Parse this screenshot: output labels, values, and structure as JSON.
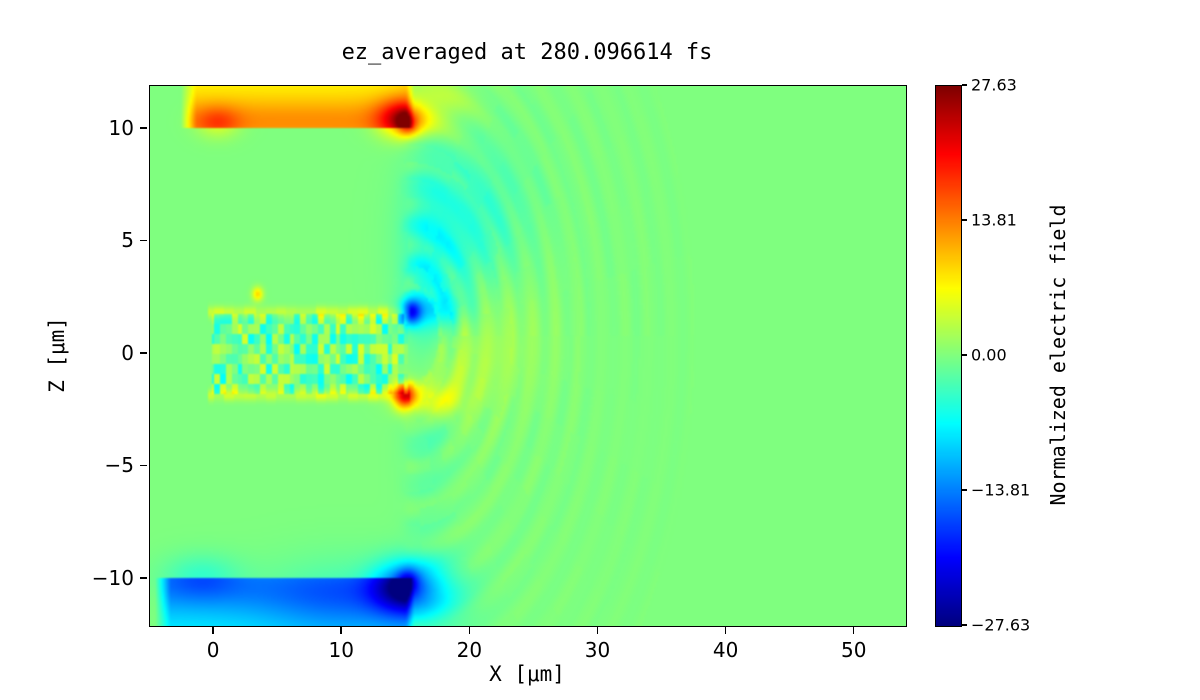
{
  "title": "ez_averaged at 280.096614 fs",
  "axes": {
    "xlabel": "X [μm]",
    "ylabel": "Z [μm]"
  },
  "colorbar": {
    "label": "Normalized electric field",
    "ticks": [
      27.63,
      13.81,
      0.0,
      -13.81,
      -27.63
    ]
  },
  "chart_data": {
    "type": "heatmap",
    "title": "ez_averaged at 280.096614 fs",
    "xlabel": "X [μm]",
    "ylabel": "Z [μm]",
    "colorbar_label": "Normalized electric field",
    "colormap": "jet",
    "xlim": [
      -5,
      54
    ],
    "zlim": [
      -12.1,
      11.9
    ],
    "vmin": -27.63,
    "vmax": 27.63,
    "x_ticks": [
      0,
      10,
      20,
      30,
      40,
      50
    ],
    "y_ticks": [
      10,
      5,
      0,
      -5,
      -10
    ],
    "colorbar_ticks": [
      27.63,
      13.81,
      0.0,
      -13.81,
      -27.63
    ],
    "description": "2D simulation field map: laser-plasma channel at z between -1.8 and 1.8 um for x 0..15 um with turbulent speckle; emitting slab at z ~= +10 um (positive field, yellow-orange with dark-red hotspot at x ~= 15) and slab at z ~= -10 um (negative field, cyan-blue with dark-blue hotspot at x ~= 15); spherical wavefront ripples radiating rightward from x ~= 15 out to x ~= 35; uniform zero-field green background",
    "features": [
      {
        "type": "slab",
        "x0": -2.6,
        "x1": 15.6,
        "z0": 10.0,
        "z1": 11.9,
        "base": 7,
        "edge_z": 10.3,
        "edge_sigma": 0.8,
        "edge_amp": 6
      },
      {
        "type": "gauss",
        "x": 0.3,
        "z": 10.3,
        "sx": 1.2,
        "sz": 0.5,
        "amp": 5
      },
      {
        "type": "gauss",
        "x": 14.8,
        "z": 10.45,
        "sx": 1.4,
        "sz": 0.6,
        "amp": 13
      },
      {
        "type": "gauss",
        "x": 15.1,
        "z": 10.2,
        "sx": 0.55,
        "sz": 0.35,
        "amp": 9
      },
      {
        "type": "gauss",
        "x": 17.3,
        "z": 11.0,
        "sx": 1.8,
        "sz": 0.9,
        "amp": 4
      },
      {
        "type": "slab",
        "x0": -4.6,
        "x1": 15.6,
        "z0": -12.1,
        "z1": -9.95,
        "base": -7,
        "edge_z": -10.35,
        "edge_sigma": 1.0,
        "edge_amp": -6
      },
      {
        "type": "gauss",
        "x": 10.0,
        "z": -11.2,
        "sx": 4.5,
        "sz": 1.4,
        "amp": -4
      },
      {
        "type": "gauss",
        "x": 14.7,
        "z": -10.4,
        "sx": 1.7,
        "sz": 0.8,
        "amp": -13
      },
      {
        "type": "gauss",
        "x": 15.1,
        "z": -10.15,
        "sx": 0.6,
        "sz": 0.4,
        "amp": -9
      },
      {
        "type": "gauss",
        "x": -1.0,
        "z": -9.9,
        "sx": 2.2,
        "sz": 0.7,
        "amp": -4
      },
      {
        "type": "gauss",
        "x": 17.2,
        "z": -10.7,
        "sx": 2.0,
        "sz": 1.1,
        "amp": -5
      },
      {
        "type": "hline",
        "z": 1.85,
        "x0": -0.5,
        "x1": 15.3,
        "amp": 4,
        "sigma": 0.18
      },
      {
        "type": "hline",
        "z": -1.85,
        "x0": -0.5,
        "x1": 15.3,
        "amp": 4,
        "sigma": 0.18
      },
      {
        "type": "noise",
        "x0": -0.2,
        "x1": 15.2,
        "z0": -1.8,
        "z1": 1.8,
        "amp": 6,
        "scale": 0.45,
        "bias": -1
      },
      {
        "type": "gauss",
        "x": 3.4,
        "z": 2.65,
        "sx": 0.3,
        "sz": 0.22,
        "amp": 9
      },
      {
        "type": "gauss",
        "x": 15.4,
        "z": 1.85,
        "sx": 0.55,
        "sz": 0.4,
        "amp": -16
      },
      {
        "type": "gauss",
        "x": 17.2,
        "z": 1.95,
        "sx": 1.6,
        "sz": 0.5,
        "amp": -5
      },
      {
        "type": "gauss",
        "x": 14.9,
        "z": -1.9,
        "sx": 0.6,
        "sz": 0.4,
        "amp": 17
      },
      {
        "type": "gauss",
        "x": 16.8,
        "z": -2.05,
        "sx": 1.6,
        "sz": 0.5,
        "amp": 7
      },
      {
        "type": "gauss",
        "x": 16.6,
        "z": 2.0,
        "sx": 1.3,
        "sz": 5.5,
        "amp": -3.5
      },
      {
        "type": "gauss",
        "x": 18.5,
        "z": 4.5,
        "sx": 2.5,
        "sz": 2.5,
        "amp": -3
      },
      {
        "type": "gauss",
        "x": 17.5,
        "z": -0.8,
        "sx": 2.0,
        "sz": 1.2,
        "amp": 3
      },
      {
        "type": "gauss",
        "x": 21.0,
        "z": 6.5,
        "sx": 3.0,
        "sz": 2.2,
        "amp": -2.5
      },
      {
        "type": "gauss",
        "x": 21.5,
        "z": 0.5,
        "sx": 3.0,
        "sz": 2.0,
        "amp": 2.2
      },
      {
        "type": "ripples",
        "cx": 15.5,
        "cz": 0.8,
        "rmin": 2.0,
        "rmax": 22.0,
        "k": 3.5,
        "amp": 2.4,
        "decay": 9
      }
    ]
  }
}
